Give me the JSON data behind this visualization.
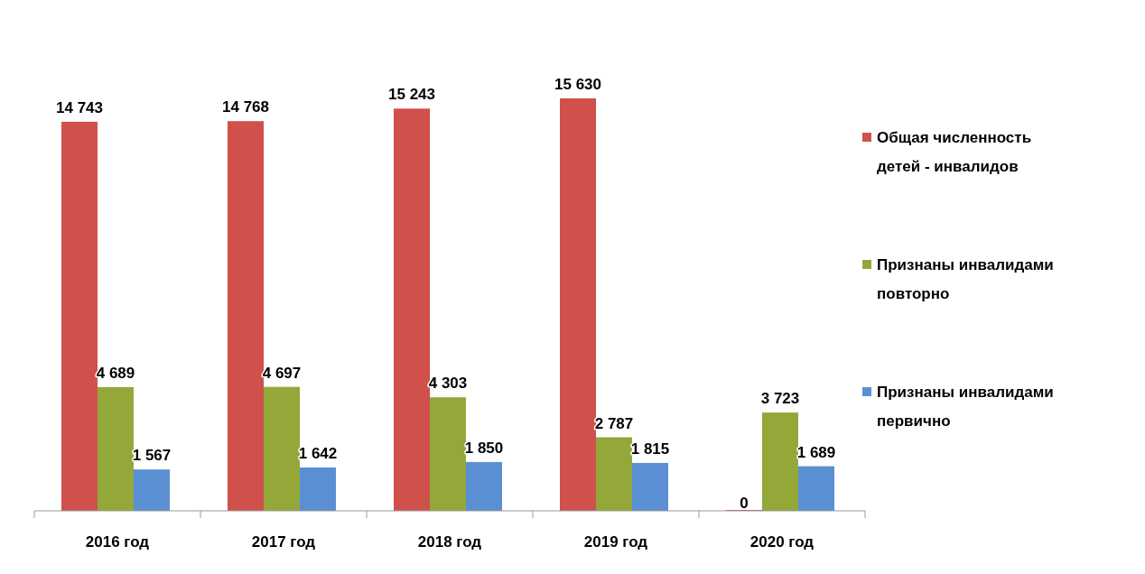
{
  "chart_data": {
    "type": "bar",
    "categories": [
      "2016 год",
      "2017 год",
      "2018 год",
      "2019 год",
      "2020 год"
    ],
    "series": [
      {
        "name": "Общая численность детей - инвалидов",
        "color": "#d0504b",
        "values": [
          14743,
          14768,
          15243,
          15630,
          0
        ]
      },
      {
        "name": "Признаны инвалидами повторно",
        "color": "#94a83a",
        "values": [
          4689,
          4697,
          4303,
          2787,
          3723
        ]
      },
      {
        "name": "Признаны инвалидами первично",
        "color": "#5b8fd4",
        "values": [
          1567,
          1642,
          1850,
          1815,
          1689
        ]
      }
    ],
    "data_labels": true,
    "legend": "right",
    "marker": "square",
    "grid": false
  }
}
